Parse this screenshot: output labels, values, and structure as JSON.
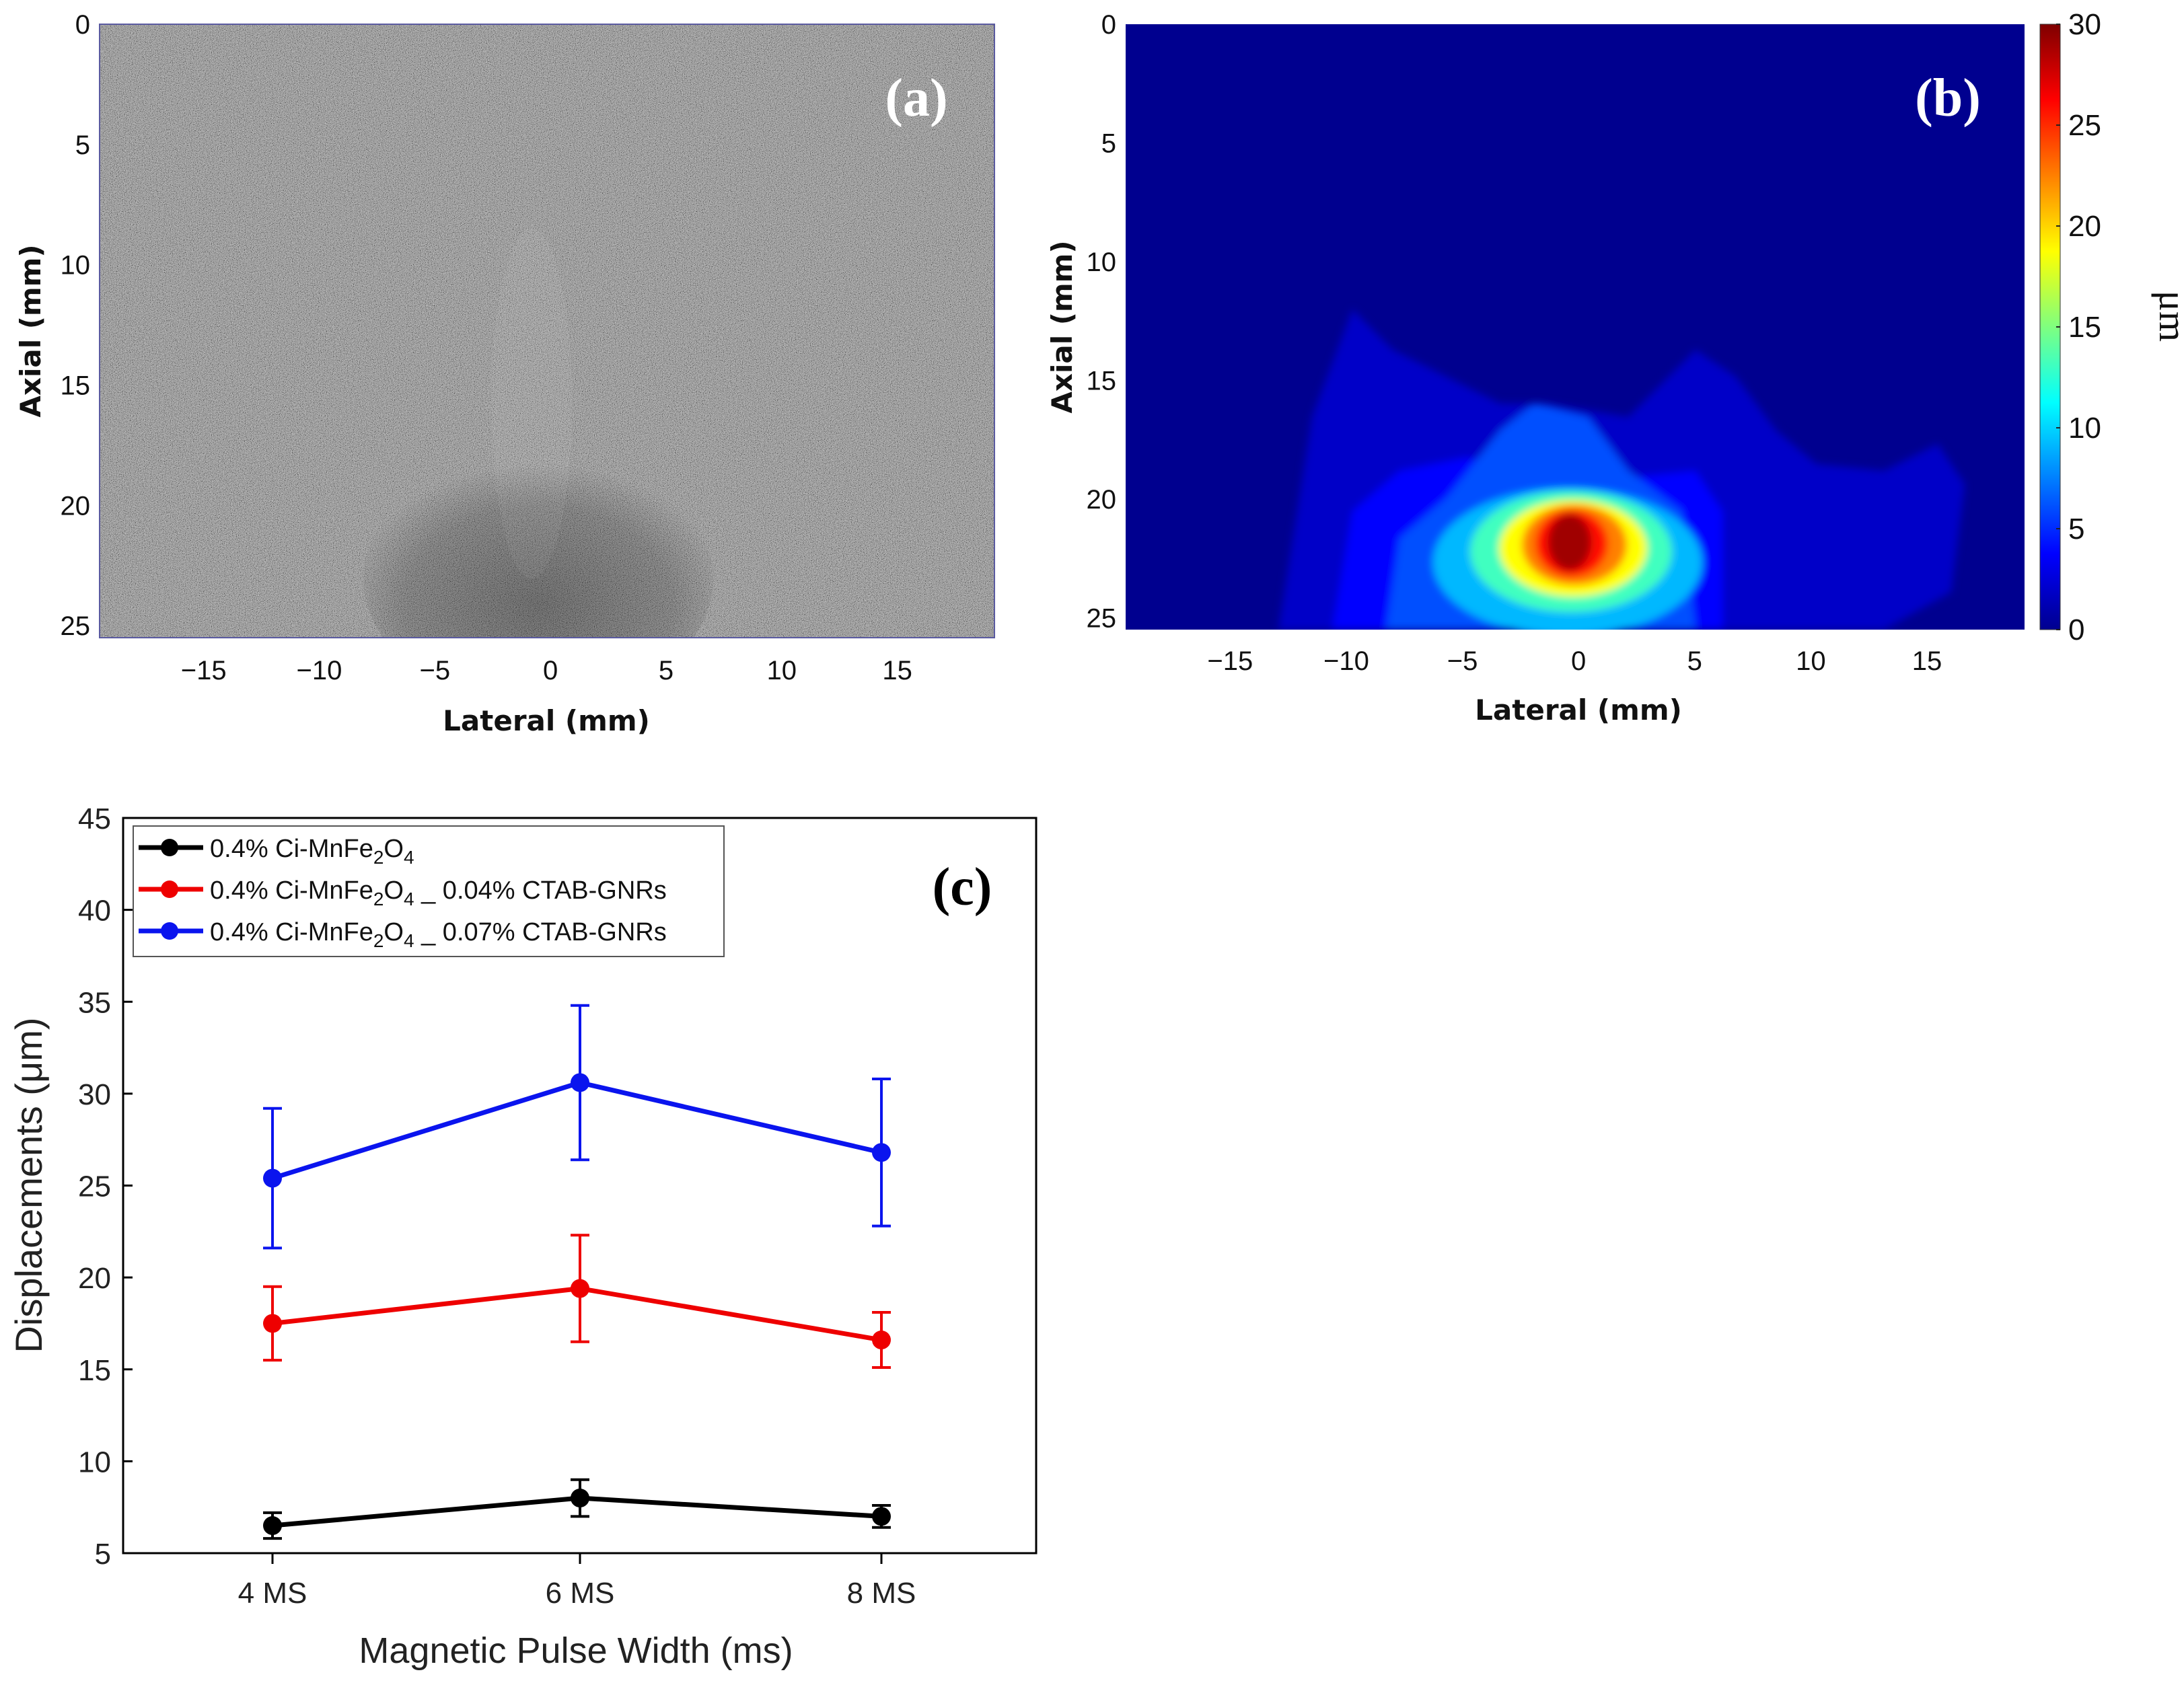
{
  "chart_data": [
    {
      "panel": "a",
      "type": "heatmap",
      "description_label": "(a)",
      "xlabel": "Lateral (mm)",
      "ylabel": "Axial (mm)",
      "xlim": [
        -19.5,
        19.2
      ],
      "ylim": [
        25.5,
        0
      ],
      "xticks": [
        -15,
        -10,
        -5,
        0,
        5,
        10,
        15
      ],
      "xtick_labels": [
        "−15",
        "−10",
        "−5",
        "0",
        "5",
        "10",
        "15"
      ],
      "yticks": [
        0,
        5,
        10,
        15,
        20,
        25
      ],
      "ytick_labels": [
        "0",
        "5",
        "10",
        "15",
        "20",
        "25"
      ]
    },
    {
      "panel": "b",
      "type": "heatmap",
      "description_label": "(b)",
      "xlabel": "Lateral (mm)",
      "ylabel": "Axial (mm)",
      "xlim": [
        -19.5,
        19.2
      ],
      "ylim": [
        25.5,
        0
      ],
      "xticks": [
        -15,
        -10,
        -5,
        0,
        5,
        10,
        15
      ],
      "xtick_labels": [
        "−15",
        "−10",
        "−5",
        "0",
        "5",
        "10",
        "15"
      ],
      "yticks": [
        0,
        5,
        10,
        15,
        20,
        25
      ],
      "ytick_labels": [
        "0",
        "5",
        "10",
        "15",
        "20",
        "25"
      ],
      "colorbar": {
        "label": "μm",
        "range": [
          0,
          30
        ],
        "ticks": [
          0,
          5,
          10,
          15,
          20,
          25,
          30
        ],
        "tick_labels": [
          "0",
          "5",
          "10",
          "15",
          "20",
          "25",
          "30"
        ]
      },
      "peak": {
        "lateral": -0.5,
        "axial": 22,
        "value": 30
      }
    },
    {
      "panel": "c",
      "type": "line",
      "description_label": "(c)",
      "xlabel": "Magnetic Pulse Width (ms)",
      "ylabel": "Displacements (μm)",
      "categories": [
        "4 MS",
        "6 MS",
        "8 MS"
      ],
      "ylim": [
        5,
        45
      ],
      "yticks": [
        5,
        10,
        15,
        20,
        25,
        30,
        35,
        40,
        45
      ],
      "ytick_labels": [
        "5",
        "10",
        "15",
        "20",
        "25",
        "30",
        "35",
        "40",
        "45"
      ],
      "legend_position": "top-left",
      "series": [
        {
          "name": "0.4% Ci-MnFe2O4",
          "label_main": "0.4% Ci-MnFe",
          "sub1": "2",
          "mid": "O",
          "sub2": "4",
          "tail": "",
          "color": "#000000",
          "values": [
            6.5,
            8.0,
            7.0
          ],
          "errors": [
            0.7,
            1.0,
            0.6
          ]
        },
        {
          "name": "0.4% Ci-MnFe2O4 _ 0.04% CTAB-GNRs",
          "label_main": "0.4% Ci-MnFe",
          "sub1": "2",
          "mid": "O",
          "sub2": "4",
          "tail": " _ 0.04% CTAB-GNRs",
          "color": "#ee0000",
          "values": [
            17.5,
            19.4,
            16.6
          ],
          "errors": [
            2.0,
            2.9,
            1.5
          ]
        },
        {
          "name": "0.4% Ci-MnFe2O4 _ 0.07% CTAB-GNRs",
          "label_main": "0.4% Ci-MnFe",
          "sub1": "2",
          "mid": "O",
          "sub2": "4",
          "tail": " _ 0.07% CTAB-GNRs",
          "color": "#0a14ee",
          "values": [
            25.4,
            30.6,
            26.8
          ],
          "errors": [
            3.8,
            4.2,
            4.0
          ]
        }
      ]
    }
  ]
}
